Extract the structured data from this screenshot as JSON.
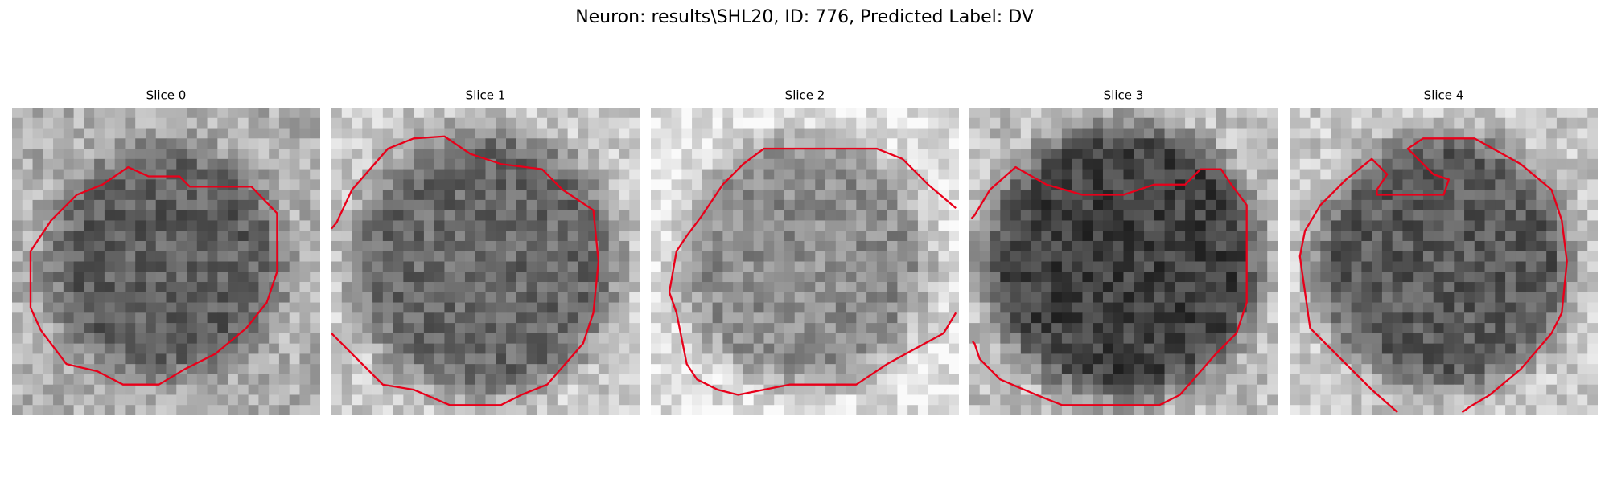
{
  "title": "Neuron: results\\SHL20, ID: 776, Predicted Label: DV",
  "panels": [
    {
      "title": "Slice 0"
    },
    {
      "title": "Slice 1"
    },
    {
      "title": "Slice 2"
    },
    {
      "title": "Slice 3"
    },
    {
      "title": "Slice 4"
    }
  ]
}
